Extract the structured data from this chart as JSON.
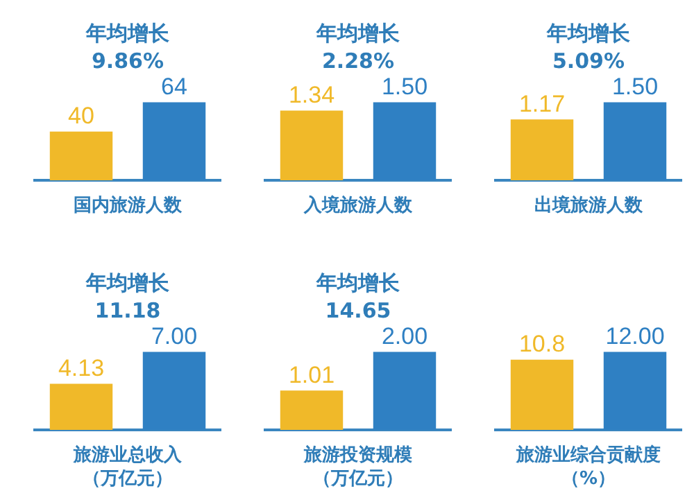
{
  "chart_data": [
    {
      "type": "bar",
      "xlabel": "国内旅游人数",
      "annotations": [
        "年均增长",
        "9.86%"
      ],
      "categories": [
        null,
        null
      ],
      "values": [
        40,
        64
      ],
      "colors": [
        "#f0b929",
        "#2f80c3"
      ],
      "data_labels": true
    },
    {
      "type": "bar",
      "xlabel": "入境旅游人数",
      "annotations": [
        "年均增长",
        "2.28%"
      ],
      "categories": [
        null,
        null
      ],
      "values": [
        1.34,
        1.5
      ],
      "colors": [
        "#f0b929",
        "#2f80c3"
      ],
      "value_labels": [
        "1.34",
        "1.50"
      ]
    },
    {
      "type": "bar",
      "xlabel": "出境旅游人数",
      "annotations": [
        "年均增长",
        "5.09%"
      ],
      "categories": [
        null,
        null
      ],
      "values": [
        1.17,
        1.5
      ],
      "colors": [
        "#f0b929",
        "#2f80c3"
      ],
      "value_labels": [
        "1.17",
        "1.50"
      ]
    },
    {
      "type": "bar",
      "xlabel": "旅游业总收入（万亿元）",
      "annotations": [
        "年均增长",
        "11.18"
      ],
      "categories": [
        null,
        null
      ],
      "values": [
        4.13,
        7.0
      ],
      "colors": [
        "#f0b929",
        "#2f80c3"
      ],
      "value_labels": [
        "4.13",
        "7.00"
      ]
    },
    {
      "type": "bar",
      "xlabel": "旅游投资规模（万亿元）",
      "annotations": [
        "年均增长",
        "14.65"
      ],
      "categories": [
        null,
        null
      ],
      "values": [
        1.01,
        2.0
      ],
      "colors": [
        "#f0b929",
        "#2f80c3"
      ],
      "value_labels": [
        "1.01",
        "2.00"
      ]
    },
    {
      "type": "bar",
      "xlabel": "旅游业综合贡献度（%）",
      "categories": [
        null,
        null
      ],
      "values": [
        10.8,
        12.0
      ],
      "colors": [
        "#f0b929",
        "#2f80c3"
      ],
      "value_labels": [
        "10.8",
        "12.00"
      ]
    }
  ]
}
